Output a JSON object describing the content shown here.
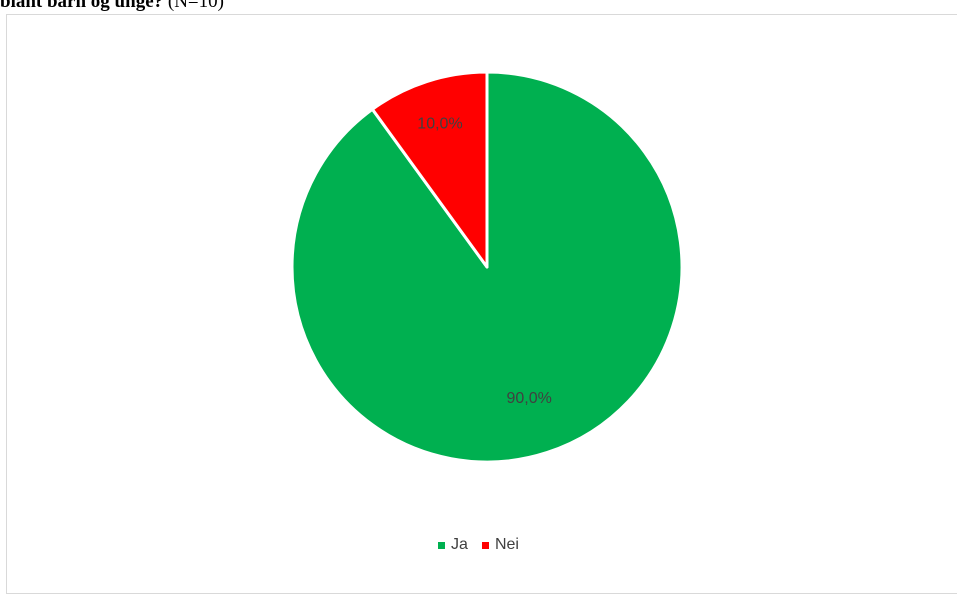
{
  "caption": {
    "bold_text": "blant barn og unge?",
    "suffix_text": " (N=10)"
  },
  "chart_data": {
    "type": "pie",
    "categories": [
      "Ja",
      "Nei"
    ],
    "values": [
      90.0,
      10.0
    ],
    "data_labels": [
      "90,0%",
      "10,0%"
    ],
    "colors": [
      "#00b050",
      "#ff0000"
    ],
    "start_angle_deg": 0,
    "direction": "clockwise",
    "legend_position": "bottom"
  }
}
